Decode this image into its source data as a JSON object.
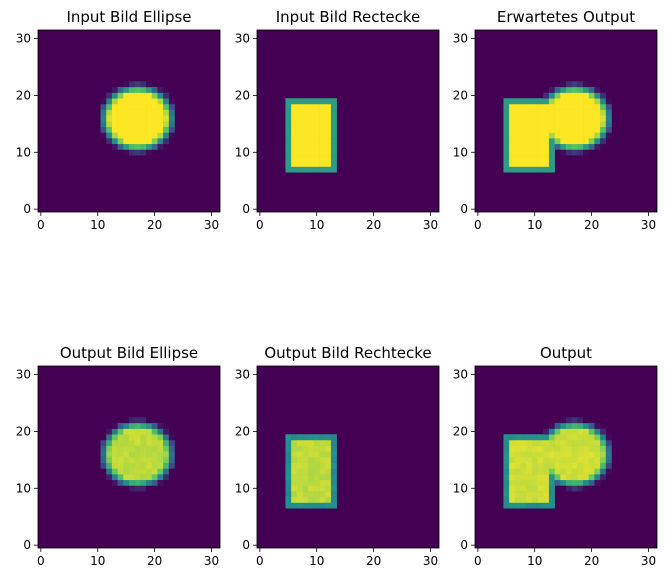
{
  "colors": {
    "background": "#440154",
    "foreground": "#fde725",
    "axis": "#000000"
  },
  "chart_data": [
    {
      "type": "heatmap",
      "title": "Input Bild Ellipse",
      "xlim": [
        0,
        31
      ],
      "ylim": [
        0,
        31
      ],
      "xticks": [
        0,
        10,
        20,
        30
      ],
      "yticks": [
        0,
        10,
        20,
        30
      ],
      "shape": {
        "kind": "ellipse",
        "cx": 17,
        "cy": 16,
        "rx": 6,
        "ry": 5.5,
        "value": 1.0,
        "noise": 0.0
      }
    },
    {
      "type": "heatmap",
      "title": "Input Bild Rectecke",
      "xlim": [
        0,
        31
      ],
      "ylim": [
        0,
        31
      ],
      "xticks": [
        0,
        10,
        20,
        30
      ],
      "yticks": [
        0,
        10,
        20,
        30
      ],
      "shape": {
        "kind": "rect",
        "x0": 5,
        "x1": 13,
        "y0": 7,
        "y1": 19,
        "value": 1.0,
        "noise": 0.0
      }
    },
    {
      "type": "heatmap",
      "title": "Erwartetes Output",
      "xlim": [
        0,
        31
      ],
      "ylim": [
        0,
        31
      ],
      "xticks": [
        0,
        10,
        20,
        30
      ],
      "yticks": [
        0,
        10,
        20,
        30
      ],
      "shape": {
        "kind": "union",
        "value": 1.0,
        "noise": 0.0
      }
    },
    {
      "type": "heatmap",
      "title": "Output Bild Ellipse",
      "xlim": [
        0,
        31
      ],
      "ylim": [
        0,
        31
      ],
      "xticks": [
        0,
        10,
        20,
        30
      ],
      "yticks": [
        0,
        10,
        20,
        30
      ],
      "shape": {
        "kind": "ellipse",
        "cx": 17,
        "cy": 16,
        "rx": 6,
        "ry": 5.5,
        "value": 0.93,
        "noise": 0.06
      }
    },
    {
      "type": "heatmap",
      "title": "Output Bild Rechtecke",
      "xlim": [
        0,
        31
      ],
      "ylim": [
        0,
        31
      ],
      "xticks": [
        0,
        10,
        20,
        30
      ],
      "yticks": [
        0,
        10,
        20,
        30
      ],
      "shape": {
        "kind": "rect",
        "x0": 5,
        "x1": 13,
        "y0": 7,
        "y1": 19,
        "value": 0.93,
        "noise": 0.06
      }
    },
    {
      "type": "heatmap",
      "title": "Output",
      "xlim": [
        0,
        31
      ],
      "ylim": [
        0,
        31
      ],
      "xticks": [
        0,
        10,
        20,
        30
      ],
      "yticks": [
        0,
        10,
        20,
        30
      ],
      "shape": {
        "kind": "union",
        "value": 0.95,
        "noise": 0.05
      }
    }
  ]
}
